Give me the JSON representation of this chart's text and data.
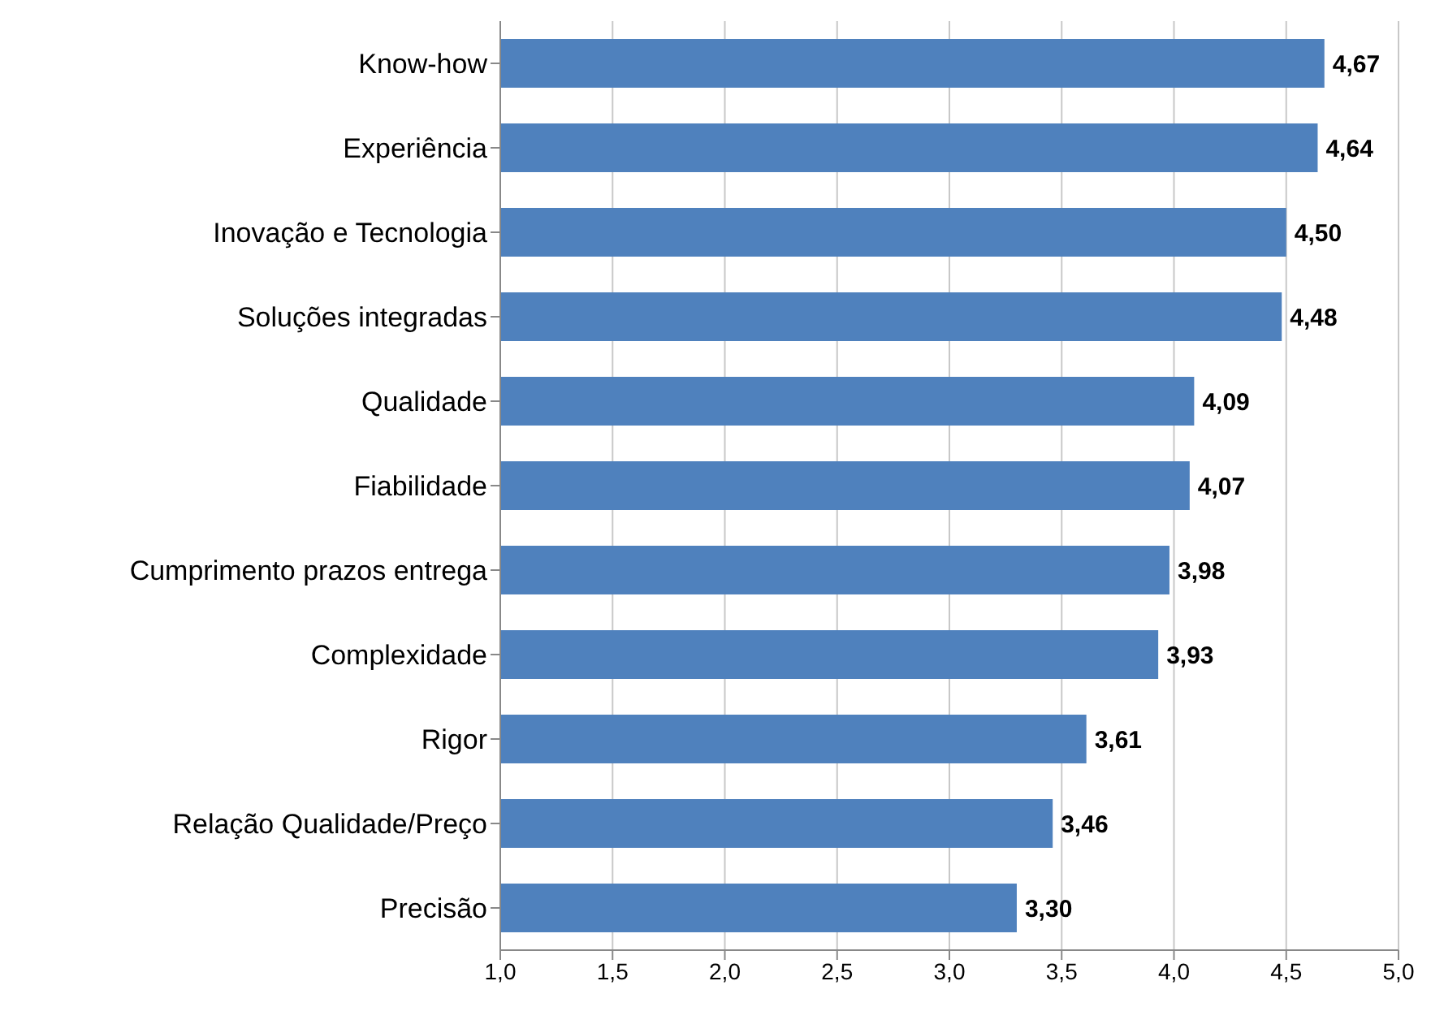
{
  "chart_data": {
    "type": "bar",
    "orientation": "horizontal",
    "categories": [
      "Know-how",
      "Experiência",
      "Inovação e Tecnologia",
      "Soluções integradas",
      "Qualidade",
      "Fiabilidade",
      "Cumprimento  prazos entrega",
      "Complexidade",
      "Rigor",
      "Relação Qualidade/Preço",
      "Precisão"
    ],
    "values": [
      4.67,
      4.64,
      4.5,
      4.48,
      4.09,
      4.07,
      3.98,
      3.93,
      3.61,
      3.46,
      3.3
    ],
    "value_labels": [
      "4,67",
      "4,64",
      "4,50",
      "4,48",
      "4,09",
      "4,07",
      "3,98",
      "3,93",
      "3,61",
      "3,46",
      "3,30"
    ],
    "color": "#4f81bd",
    "xlim": [
      1,
      5
    ],
    "xticks": [
      {
        "value": 1,
        "label": "1,0"
      },
      {
        "value": 1.5,
        "label": "1,5"
      },
      {
        "value": 2,
        "label": "2,0"
      },
      {
        "value": 2.5,
        "label": "2,5"
      },
      {
        "value": 3,
        "label": "3,0"
      },
      {
        "value": 3.5,
        "label": "3,5"
      },
      {
        "value": 4,
        "label": "4,0"
      },
      {
        "value": 4.5,
        "label": "4,5"
      },
      {
        "value": 5,
        "label": "5,0"
      }
    ],
    "grid": "x"
  }
}
